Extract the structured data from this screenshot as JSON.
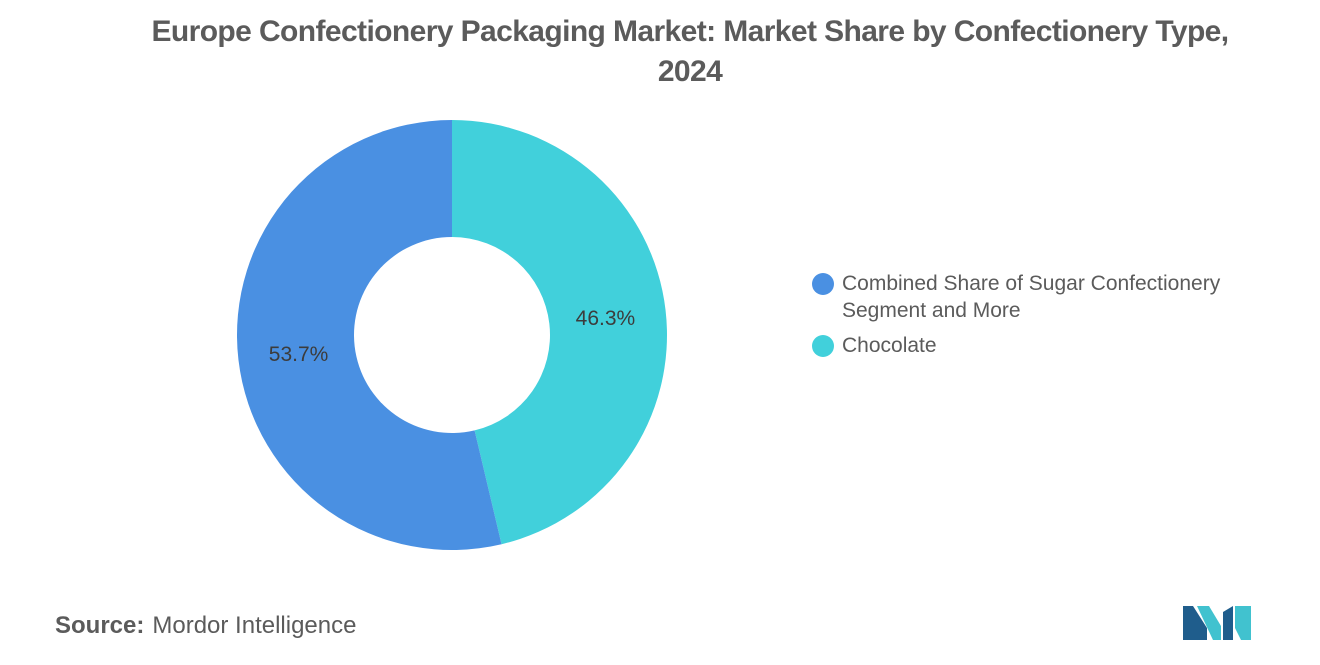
{
  "chart_data": {
    "type": "pie",
    "donut": true,
    "title": "Europe Confectionery Packaging Market: Market Share by Confectionery Type, 2024",
    "slices": [
      {
        "label": "Chocolate",
        "value": 46.3,
        "display": "46.3%",
        "color": "#41d0db"
      },
      {
        "label": "Combined Share of Sugar Confectionery Segment and More",
        "value": 53.7,
        "display": "53.7%",
        "color": "#4a90e2"
      }
    ],
    "legend": [
      {
        "label": "Combined Share of Sugar Confectionery Segment and More",
        "color": "#4a90e2"
      },
      {
        "label": "Chocolate",
        "color": "#41d0db"
      }
    ],
    "legend_position": "right"
  },
  "source": {
    "key": "Source:",
    "value": "Mordor Intelligence"
  },
  "logo": {
    "icon": "mordor-intelligence-logo-icon",
    "colors": [
      "#1f5d8c",
      "#41c2cf"
    ]
  }
}
